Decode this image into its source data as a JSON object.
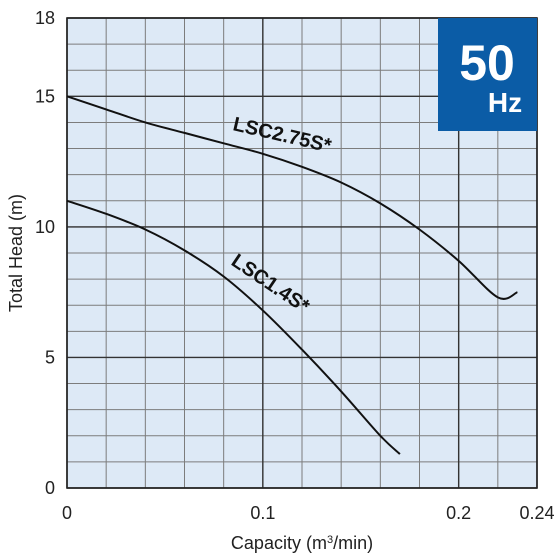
{
  "chart_data": {
    "type": "line",
    "xlabel": "Capacity (m³/min)",
    "xlabel_prefix": "Capacity (m",
    "xlabel_sup": "3",
    "xlabel_suffix": "/min)",
    "ylabel": "Total Head (m)",
    "xlim": [
      0,
      0.24
    ],
    "ylim": [
      0,
      18
    ],
    "x_ticks": [
      {
        "value": 0,
        "label": "0"
      },
      {
        "value": 0.1,
        "label": "0.1"
      },
      {
        "value": 0.2,
        "label": "0.2"
      },
      {
        "value": 0.24,
        "label": "0.24"
      }
    ],
    "y_ticks": [
      {
        "value": 0,
        "label": "0"
      },
      {
        "value": 5,
        "label": "5"
      },
      {
        "value": 10,
        "label": "10"
      },
      {
        "value": 15,
        "label": "15"
      },
      {
        "value": 18,
        "label": "18"
      }
    ],
    "x_grid_step": 0.02,
    "y_grid_step": 1,
    "grid": true,
    "background_color": "#dde9f6",
    "grid_color": "#7c7c7c",
    "series": [
      {
        "name": "LSC2.75S*",
        "x": [
          0,
          0.02,
          0.04,
          0.06,
          0.08,
          0.1,
          0.12,
          0.14,
          0.16,
          0.18,
          0.2,
          0.22,
          0.23
        ],
        "y": [
          15.0,
          14.5,
          14.0,
          13.6,
          13.2,
          12.8,
          12.3,
          11.7,
          10.9,
          9.9,
          8.7,
          7.3,
          7.5
        ]
      },
      {
        "name": "LSC1.4S*",
        "x": [
          0,
          0.02,
          0.04,
          0.06,
          0.08,
          0.1,
          0.12,
          0.14,
          0.16,
          0.17
        ],
        "y": [
          11.0,
          10.5,
          9.9,
          9.1,
          8.1,
          6.8,
          5.3,
          3.7,
          2.0,
          1.3
        ]
      }
    ]
  },
  "badge": {
    "frequency": "50",
    "unit": "Hz",
    "color": "#0b5ca6"
  }
}
